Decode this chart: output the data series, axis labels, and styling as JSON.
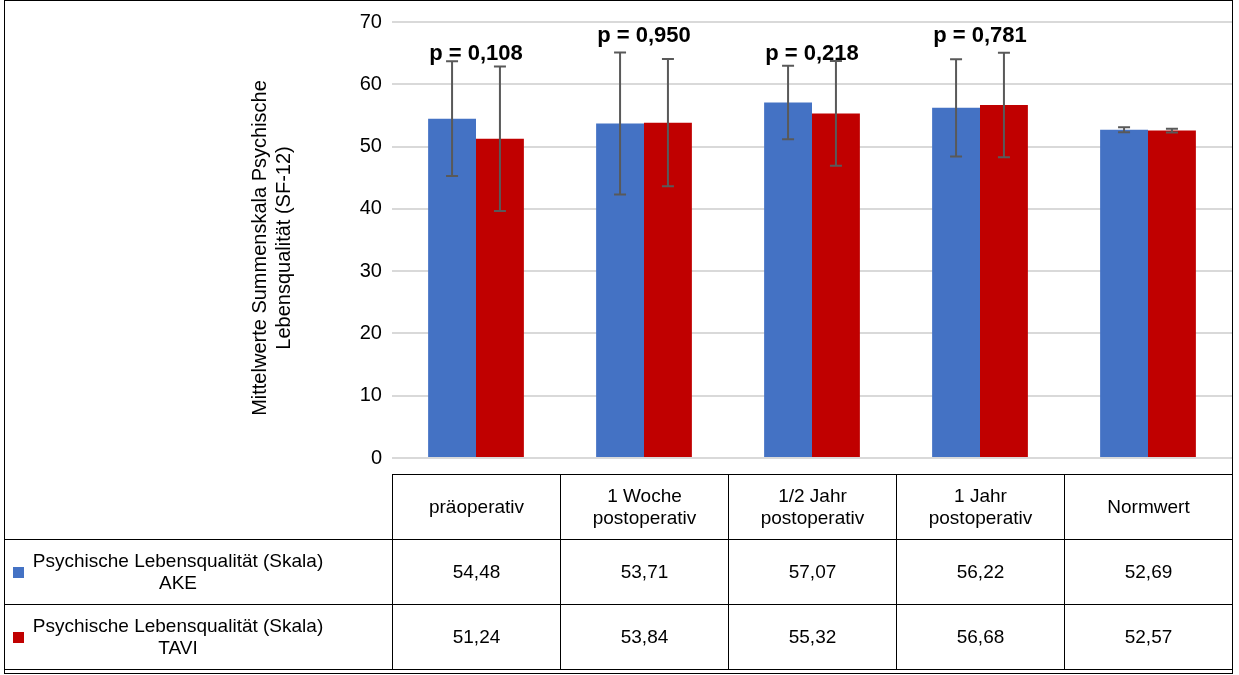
{
  "chart_data": {
    "type": "bar",
    "ylabel": "Mittelwerte  Summenskala Psychische Lebensqualität (SF-12)",
    "categories": [
      "präoperativ",
      "1 Woche postoperativ",
      "1/2 Jahr postoperativ",
      "1 Jahr postoperativ",
      "Normwert"
    ],
    "series": [
      {
        "name": "Psychische Lebensqualität (Skala) AKE",
        "color": "#4472c4",
        "values": [
          54.48,
          53.71,
          57.07,
          56.22,
          52.69
        ],
        "value_labels": [
          "54,48",
          "53,71",
          "57,07",
          "56,22",
          "52,69"
        ],
        "errors": [
          9.2,
          11.4,
          5.9,
          7.8,
          0.4
        ]
      },
      {
        "name": "Psychische Lebensqualität (Skala) TAVI",
        "color": "#c00000",
        "values": [
          51.24,
          53.84,
          55.32,
          56.68,
          52.57
        ],
        "value_labels": [
          "51,24",
          "53,84",
          "55,32",
          "56,68",
          "52,57"
        ],
        "errors": [
          11.6,
          10.2,
          8.4,
          8.4,
          0.3
        ]
      }
    ],
    "ylim": [
      0,
      70
    ],
    "yticks": [
      0,
      10,
      20,
      30,
      40,
      50,
      60,
      70
    ],
    "grid": "y",
    "legend": "bottom",
    "annotations": [
      "p = 0,108",
      "p = 0,950",
      "p = 0,218",
      "p = 0,781"
    ]
  }
}
